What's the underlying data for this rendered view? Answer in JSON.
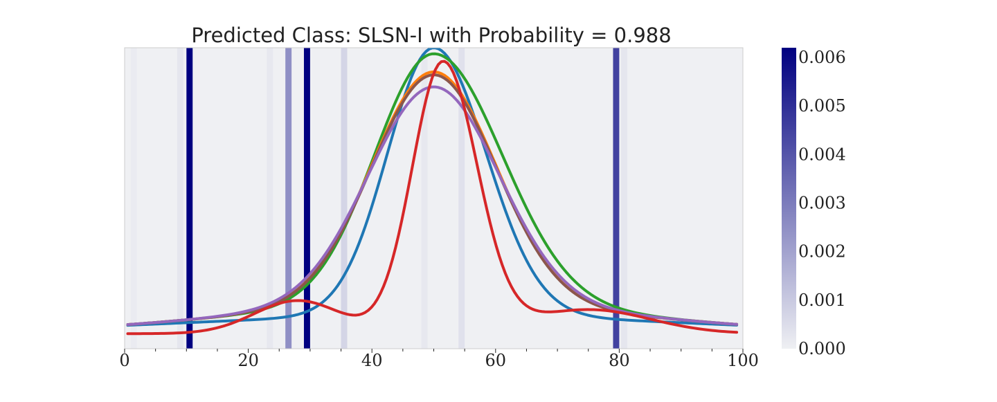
{
  "chart_data": {
    "type": "line",
    "title": "Predicted Class: SLSN-I with Probability = 0.988",
    "xlabel": "",
    "ylabel": "",
    "xlim": [
      0,
      100
    ],
    "ylim": [
      0,
      1
    ],
    "x_ticks": [
      0,
      20,
      40,
      60,
      80,
      100
    ],
    "x_minor_ticks": [
      5,
      10,
      15,
      25,
      30,
      35,
      45,
      50,
      55,
      65,
      70,
      75,
      85,
      90,
      95
    ],
    "y_ticks_visible": false,
    "grid": false,
    "legend": "none",
    "background_color": "#eff0f3",
    "series": [
      {
        "color": "#1f77b4",
        "peak_x": 50,
        "peak_y": 0.94,
        "baseline": 0.05,
        "sigma_left": 7.5,
        "sigma_right": 8.5,
        "tail_height": 0.06,
        "tail_width": 40
      },
      {
        "color": "#2ca02c",
        "peak_x": 50,
        "peak_y": 0.88,
        "baseline": 0.05,
        "sigma_left": 9.5,
        "sigma_right": 11.0,
        "tail_height": 0.1,
        "tail_width": 32
      },
      {
        "color": "#ff7f0e",
        "peak_x": 50,
        "peak_y": 0.82,
        "baseline": 0.05,
        "sigma_left": 10.0,
        "sigma_right": 10.0,
        "tail_height": 0.1,
        "tail_width": 32
      },
      {
        "color": "#8c564b",
        "peak_x": 50,
        "peak_y": 0.81,
        "baseline": 0.05,
        "sigma_left": 10.0,
        "sigma_right": 10.0,
        "tail_height": 0.1,
        "tail_width": 32
      },
      {
        "color": "#9467bd",
        "peak_x": 50,
        "peak_y": 0.77,
        "baseline": 0.05,
        "sigma_left": 10.5,
        "sigma_right": 10.5,
        "tail_height": 0.1,
        "tail_width": 32
      },
      {
        "color": "#d62728",
        "peak_x": 51.5,
        "peak_y": 0.95,
        "baseline": 0.05,
        "sigma_left": 5.0,
        "sigma_right": 5.5,
        "bump_x": 28,
        "bump_y": 0.11,
        "bump_sigma": 7,
        "shoulder_x": 75,
        "shoulder_y": 0.08,
        "shoulder_sigma": 10
      }
    ],
    "attention_bands": [
      {
        "x": 10.5,
        "value": 0.0062
      },
      {
        "x": 29.5,
        "value": 0.0062
      },
      {
        "x": 26.5,
        "value": 0.0025
      },
      {
        "x": 79.5,
        "value": 0.0045
      },
      {
        "x": 35.5,
        "value": 0.0007
      },
      {
        "x": 54.5,
        "value": 0.0004
      },
      {
        "x": 9.0,
        "value": 0.00025
      },
      {
        "x": 23.5,
        "value": 0.0002
      },
      {
        "x": 48.5,
        "value": 0.0002
      },
      {
        "x": 80.8,
        "value": 0.00025
      },
      {
        "x": 1.5,
        "value": 0.00012
      }
    ],
    "colorbar": {
      "min": 0.0,
      "max": 0.0062,
      "ticks": [
        "0.000",
        "0.001",
        "0.002",
        "0.003",
        "0.004",
        "0.005",
        "0.006"
      ],
      "tick_values": [
        0.0,
        0.001,
        0.002,
        0.003,
        0.004,
        0.005,
        0.006
      ],
      "color_low": "#eff0f3",
      "color_high": "#000080"
    }
  }
}
